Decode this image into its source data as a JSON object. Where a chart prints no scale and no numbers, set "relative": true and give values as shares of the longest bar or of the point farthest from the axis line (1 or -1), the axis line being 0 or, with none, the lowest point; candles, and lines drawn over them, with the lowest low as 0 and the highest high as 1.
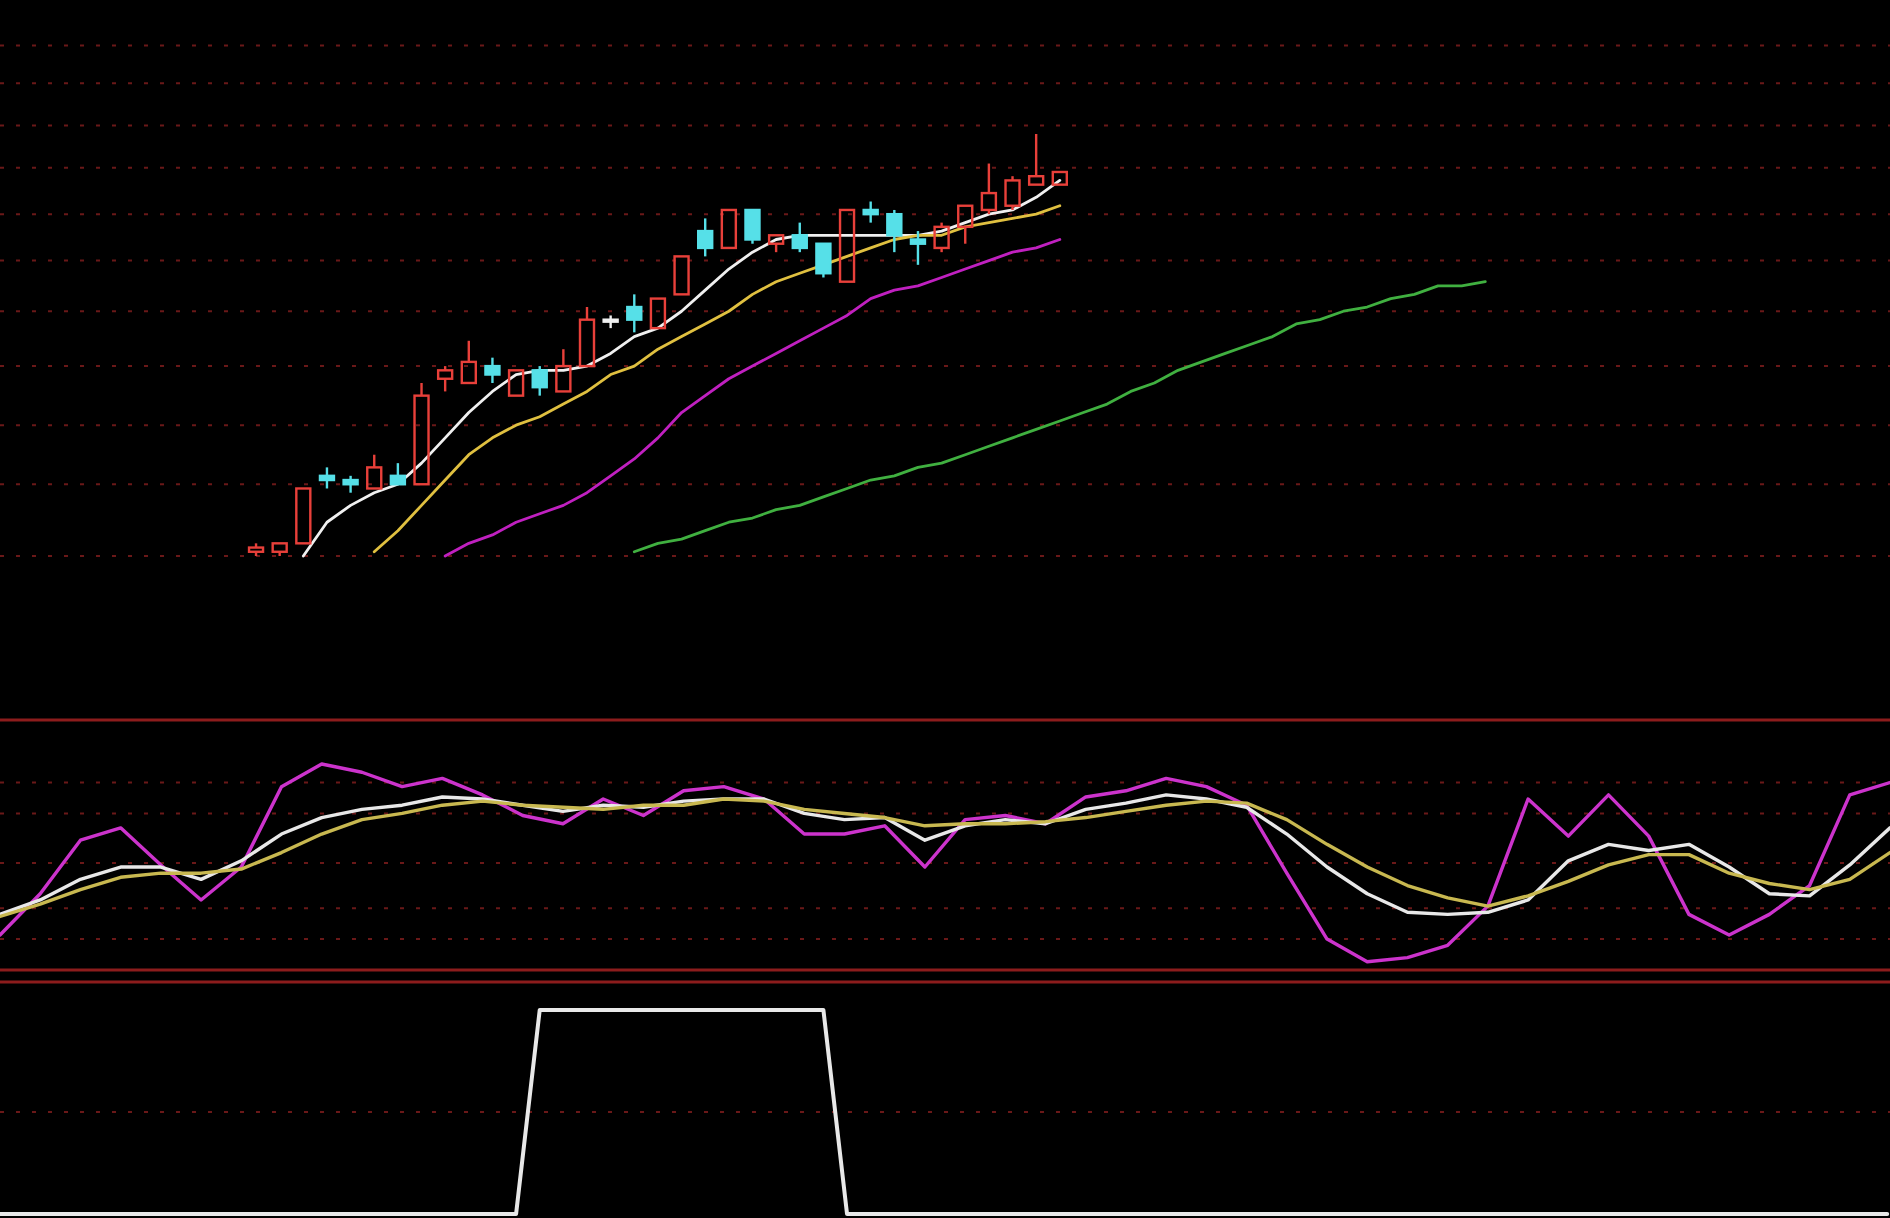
{
  "chart_data": [
    {
      "type": "candlestick",
      "relative": true,
      "categories": [
        null,
        null,
        null,
        null,
        null,
        null,
        null,
        null,
        null,
        null,
        null,
        null,
        null,
        null,
        null,
        null,
        null,
        null,
        null,
        null,
        null,
        null,
        null,
        null,
        null,
        null,
        null,
        null,
        null,
        null,
        null,
        null,
        null,
        null,
        null,
        null,
        null,
        null,
        null,
        null,
        null,
        null,
        null,
        null,
        null,
        null,
        null,
        null,
        null,
        null,
        null,
        null,
        null,
        null,
        null,
        null,
        null,
        null,
        null,
        null,
        null,
        null,
        null,
        null,
        null,
        null,
        null,
        null,
        null,
        null,
        null,
        null,
        null,
        null,
        null,
        null,
        null,
        null,
        null,
        null,
        null
      ],
      "ohlc": [
        null,
        null,
        null,
        null,
        null,
        null,
        null,
        null,
        null,
        null,
        null,
        [
          0.01,
          0.03,
          0,
          0.02
        ],
        [
          0.01,
          0.03,
          0,
          0.03
        ],
        [
          0.03,
          0.16,
          0.03,
          0.16
        ],
        [
          0.19,
          0.21,
          0.16,
          0.18
        ],
        [
          0.18,
          0.19,
          0.15,
          0.17
        ],
        [
          0.16,
          0.24,
          0.16,
          0.21
        ],
        [
          0.19,
          0.22,
          0.17,
          0.17
        ],
        [
          0.17,
          0.41,
          0.17,
          0.38
        ],
        [
          0.42,
          0.45,
          0.39,
          0.44
        ],
        [
          0.41,
          0.51,
          0.41,
          0.46
        ],
        [
          0.45,
          0.47,
          0.41,
          0.43
        ],
        [
          0.38,
          0.44,
          0.38,
          0.44
        ],
        [
          0.44,
          0.45,
          0.38,
          0.4
        ],
        [
          0.39,
          0.49,
          0.39,
          0.45
        ],
        [
          0.45,
          0.59,
          0.45,
          0.56
        ],
        [
          0.56,
          0.57,
          0.54,
          0.56
        ],
        [
          0.59,
          0.62,
          0.53,
          0.56
        ],
        [
          0.54,
          0.61,
          0.54,
          0.61
        ],
        [
          0.62,
          0.71,
          0.62,
          0.71
        ],
        [
          0.77,
          0.8,
          0.71,
          0.73
        ],
        [
          0.73,
          0.82,
          0.73,
          0.82
        ],
        [
          0.82,
          0.82,
          0.74,
          0.75
        ],
        [
          0.74,
          0.76,
          0.72,
          0.76
        ],
        [
          0.76,
          0.79,
          0.72,
          0.73
        ],
        [
          0.74,
          0.74,
          0.66,
          0.67
        ],
        [
          0.65,
          0.82,
          0.65,
          0.82
        ],
        [
          0.82,
          0.84,
          0.79,
          0.81
        ],
        [
          0.81,
          0.82,
          0.72,
          0.76
        ],
        [
          0.75,
          0.77,
          0.69,
          0.74
        ],
        [
          0.73,
          0.79,
          0.72,
          0.78
        ],
        [
          0.78,
          0.83,
          0.74,
          0.83
        ],
        [
          0.82,
          0.93,
          0.81,
          0.86
        ],
        [
          0.83,
          0.9,
          0.82,
          0.89
        ],
        [
          0.88,
          1,
          0.88,
          0.9
        ],
        [
          0.88,
          0.91,
          0.88,
          0.91
        ],
        null,
        null,
        null,
        null,
        null,
        null,
        null,
        null,
        null,
        null,
        null,
        null,
        null,
        null,
        null,
        null,
        null,
        null,
        null,
        null,
        null,
        null,
        null,
        null,
        null,
        null,
        null,
        null,
        null,
        null,
        null,
        null,
        null,
        null,
        null
      ],
      "colors": [
        null,
        null,
        null,
        null,
        null,
        null,
        null,
        null,
        null,
        null,
        null,
        "#e8403a",
        "#e8403a",
        "#e8403a",
        "#56e0e8",
        "#56e0e8",
        "#e8403a",
        "#56e0e8",
        "#e8403a",
        "#e8403a",
        "#e8403a",
        "#56e0e8",
        "#e8403a",
        "#56e0e8",
        "#e8403a",
        "#e8403a",
        "#f0f0f0",
        "#56e0e8",
        "#e8403a",
        "#e8403a",
        "#56e0e8",
        "#e8403a",
        "#56e0e8",
        "#e8403a",
        "#56e0e8",
        "#56e0e8",
        "#e8403a",
        "#56e0e8",
        "#56e0e8",
        "#56e0e8",
        "#e8403a",
        "#e8403a",
        "#e8403a",
        "#e8403a",
        "#e8403a",
        "#e8403a",
        null,
        null,
        null,
        null,
        null,
        null,
        null,
        null,
        null,
        null,
        null,
        null,
        null,
        null,
        null,
        null,
        null,
        null,
        null,
        null,
        null,
        null,
        null,
        null,
        null,
        null,
        null,
        null,
        null,
        null,
        null,
        null,
        null,
        null,
        null
      ],
      "series": [
        {
          "type": "line",
          "color": "#f0f0f0",
          "values": [
            null,
            null,
            null,
            null,
            null,
            null,
            null,
            null,
            null,
            null,
            null,
            null,
            null,
            0,
            0.08,
            0.12,
            0.15,
            0.17,
            0.22,
            0.28,
            0.34,
            0.39,
            0.43,
            0.44,
            0.44,
            0.45,
            0.48,
            0.52,
            0.54,
            0.58,
            0.63,
            0.68,
            0.72,
            0.75,
            0.76,
            0.76,
            0.76,
            0.76,
            0.76,
            0.76,
            0.77,
            0.79,
            0.81,
            0.82,
            0.85,
            0.89,
            null,
            null,
            null,
            null,
            null,
            null,
            null,
            null,
            null,
            null,
            null,
            null,
            null,
            null,
            null,
            null,
            null,
            null,
            null,
            null,
            null,
            null,
            null,
            null,
            null,
            null,
            null,
            null,
            null,
            null,
            null,
            null,
            null,
            null,
            null
          ]
        },
        {
          "type": "line",
          "color": "#e0c040",
          "values": [
            null,
            null,
            null,
            null,
            null,
            null,
            null,
            null,
            null,
            null,
            null,
            null,
            null,
            null,
            null,
            null,
            0.01,
            0.06,
            0.12,
            0.18,
            0.24,
            0.28,
            0.31,
            0.33,
            0.36,
            0.39,
            0.43,
            0.45,
            0.49,
            0.52,
            0.55,
            0.58,
            0.62,
            0.65,
            0.67,
            0.69,
            0.71,
            0.73,
            0.75,
            0.76,
            0.76,
            0.78,
            0.79,
            0.8,
            0.81,
            0.83,
            null,
            null,
            null,
            null,
            null,
            null,
            null,
            null,
            null,
            null,
            null,
            null,
            null,
            null,
            null,
            null,
            null,
            null,
            null,
            null,
            null,
            null,
            null,
            null,
            null,
            null,
            null,
            null,
            null,
            null,
            null,
            null,
            null,
            null,
            null
          ]
        },
        {
          "type": "line",
          "color": "#c020c0",
          "values": [
            null,
            null,
            null,
            null,
            null,
            null,
            null,
            null,
            null,
            null,
            null,
            null,
            null,
            null,
            null,
            null,
            null,
            null,
            null,
            0,
            0.03,
            0.05,
            0.08,
            0.1,
            0.12,
            0.15,
            0.19,
            0.23,
            0.28,
            0.34,
            0.38,
            0.42,
            0.45,
            0.48,
            0.51,
            0.54,
            0.57,
            0.61,
            0.63,
            0.64,
            0.66,
            0.68,
            0.7,
            0.72,
            0.73,
            0.75,
            null,
            null,
            null,
            null,
            null,
            null,
            null,
            null,
            null,
            null,
            null,
            null,
            null,
            null,
            null,
            null,
            null,
            null,
            null,
            null,
            null,
            null,
            null,
            null,
            null,
            null,
            null,
            null,
            null,
            null,
            null,
            null,
            null,
            null,
            null
          ]
        },
        {
          "type": "line",
          "color": "#40b040",
          "values": [
            null,
            null,
            null,
            null,
            null,
            null,
            null,
            null,
            null,
            null,
            null,
            null,
            null,
            null,
            null,
            null,
            null,
            null,
            null,
            null,
            null,
            null,
            null,
            null,
            null,
            null,
            null,
            0.01,
            0.03,
            0.04,
            0.06,
            0.08,
            0.09,
            0.11,
            0.12,
            0.14,
            0.16,
            0.18,
            0.19,
            0.21,
            0.22,
            0.24,
            0.26,
            0.28,
            0.3,
            0.32,
            0.34,
            0.36,
            0.39,
            0.41,
            0.44,
            0.46,
            0.48,
            0.5,
            0.52,
            0.55,
            0.56,
            0.58,
            0.59,
            0.61,
            0.62,
            0.64,
            0.64,
            0.65,
            null,
            null,
            null,
            null,
            null,
            null,
            null,
            null,
            null,
            null,
            null,
            null,
            null,
            null,
            null,
            null,
            null
          ]
        }
      ],
      "ref_lines": [
        {
          "axis": "y",
          "value": 1.21,
          "color": "#6a1818",
          "line_style": "dotted"
        },
        {
          "axis": "y",
          "value": 1.12,
          "color": "#6a1818",
          "line_style": "dotted"
        },
        {
          "axis": "y",
          "value": 1.02,
          "color": "#6a1818",
          "line_style": "dotted"
        },
        {
          "axis": "y",
          "value": 0.92,
          "color": "#6a1818",
          "line_style": "dotted"
        },
        {
          "axis": "y",
          "value": 0.81,
          "color": "#6a1818",
          "line_style": "dotted"
        },
        {
          "axis": "y",
          "value": 0.7,
          "color": "#6a1818",
          "line_style": "dotted"
        },
        {
          "axis": "y",
          "value": 0.58,
          "color": "#6a1818",
          "line_style": "dotted"
        },
        {
          "axis": "y",
          "value": 0.45,
          "color": "#6a1818",
          "line_style": "dotted"
        },
        {
          "axis": "y",
          "value": 0.31,
          "color": "#6a1818",
          "line_style": "dotted"
        },
        {
          "axis": "y",
          "value": 0.17,
          "color": "#6a1818",
          "line_style": "dotted"
        },
        {
          "axis": "y",
          "value": 0,
          "color": "#6a1818",
          "line_style": "dotted"
        }
      ]
    },
    {
      "type": "line",
      "relative": true,
      "categories": [
        null,
        null,
        null,
        null,
        null,
        null,
        null,
        null,
        null,
        null,
        null,
        null,
        null,
        null,
        null,
        null,
        null,
        null,
        null,
        null,
        null,
        null,
        null,
        null,
        null,
        null,
        null,
        null,
        null,
        null,
        null,
        null,
        null,
        null,
        null,
        null,
        null,
        null,
        null,
        null,
        null,
        null,
        null,
        null,
        null,
        null,
        null,
        null
      ],
      "series": [
        {
          "color": "#cc33cc",
          "values": [
            0.17,
            0.37,
            0.63,
            0.69,
            0.51,
            0.34,
            0.5,
            0.89,
            1,
            0.96,
            0.89,
            0.93,
            0.85,
            0.75,
            0.71,
            0.83,
            0.75,
            0.87,
            0.89,
            0.83,
            0.66,
            0.66,
            0.7,
            0.5,
            0.73,
            0.75,
            0.71,
            0.84,
            0.87,
            0.93,
            0.89,
            0.8,
            0.47,
            0.15,
            0.04,
            0.06,
            0.12,
            0.31,
            0.83,
            0.65,
            0.85,
            0.65,
            0.27,
            0.17,
            0.27,
            0.41,
            0.85,
            0.91
          ]
        },
        {
          "color": "#e8e8e8",
          "values": [
            0.27,
            0.34,
            0.44,
            0.5,
            0.5,
            0.44,
            0.53,
            0.66,
            0.74,
            0.78,
            0.8,
            0.84,
            0.83,
            0.8,
            0.77,
            0.8,
            0.79,
            0.82,
            0.83,
            0.83,
            0.76,
            0.73,
            0.74,
            0.63,
            0.7,
            0.73,
            0.71,
            0.78,
            0.81,
            0.85,
            0.83,
            0.79,
            0.66,
            0.5,
            0.37,
            0.28,
            0.27,
            0.28,
            0.34,
            0.53,
            0.61,
            0.58,
            0.61,
            0.5,
            0.37,
            0.36,
            0.51,
            0.69
          ]
        },
        {
          "color": "#c8b850",
          "values": [
            0.26,
            0.32,
            0.39,
            0.45,
            0.47,
            0.47,
            0.49,
            0.57,
            0.66,
            0.73,
            0.76,
            0.8,
            0.82,
            0.8,
            0.79,
            0.78,
            0.8,
            0.8,
            0.83,
            0.82,
            0.78,
            0.76,
            0.74,
            0.7,
            0.71,
            0.71,
            0.72,
            0.74,
            0.77,
            0.8,
            0.82,
            0.81,
            0.73,
            0.61,
            0.5,
            0.41,
            0.35,
            0.31,
            0.36,
            0.43,
            0.51,
            0.56,
            0.56,
            0.47,
            0.42,
            0.39,
            0.44,
            0.57
          ]
        }
      ],
      "ref_lines": [
        {
          "axis": "y",
          "value": 0.91,
          "color": "#6a1818",
          "line_style": "dotted"
        },
        {
          "axis": "y",
          "value": 0.76,
          "color": "#6a1818",
          "line_style": "dotted"
        },
        {
          "axis": "y",
          "value": 0.52,
          "color": "#6a1818",
          "line_style": "dotted"
        },
        {
          "axis": "y",
          "value": 0.3,
          "color": "#6a1818",
          "line_style": "dotted"
        },
        {
          "axis": "y",
          "value": 0.15,
          "color": "#6a1818",
          "line_style": "dotted"
        }
      ]
    },
    {
      "type": "line",
      "relative": true,
      "categories": [
        null,
        null,
        null,
        null,
        null,
        null,
        null,
        null,
        null,
        null,
        null,
        null,
        null,
        null,
        null,
        null,
        null,
        null,
        null,
        null,
        null,
        null,
        null,
        null,
        null,
        null,
        null,
        null,
        null,
        null,
        null,
        null,
        null,
        null,
        null,
        null,
        null,
        null,
        null,
        null,
        null,
        null,
        null,
        null,
        null,
        null,
        null,
        null,
        null,
        null,
        null,
        null,
        null,
        null,
        null,
        null,
        null,
        null,
        null,
        null,
        null,
        null,
        null,
        null,
        null,
        null,
        null,
        null,
        null,
        null,
        null,
        null,
        null,
        null,
        null,
        null,
        null,
        null,
        null,
        null,
        null
      ],
      "series": [
        {
          "color": "#e8e8e8",
          "values": [
            0,
            0,
            0,
            0,
            0,
            0,
            0,
            0,
            0,
            0,
            0,
            0,
            0,
            0,
            0,
            0,
            0,
            0,
            0,
            0,
            0,
            0,
            0,
            1,
            1,
            1,
            1,
            1,
            1,
            1,
            1,
            1,
            1,
            1,
            1,
            1,
            0,
            0,
            0,
            0,
            0,
            0,
            0,
            0,
            0,
            0,
            0,
            0,
            0,
            0,
            0,
            0,
            0,
            0,
            0,
            0,
            0,
            0,
            0,
            0,
            0,
            0,
            0,
            0,
            0,
            0,
            0,
            0,
            0,
            0,
            0,
            0,
            0,
            0,
            0,
            0,
            0,
            0,
            0,
            0,
            0
          ]
        }
      ],
      "ref_lines": [
        {
          "axis": "y",
          "value": 0.5,
          "color": "#6a1818",
          "line_style": "dotted"
        }
      ]
    }
  ]
}
